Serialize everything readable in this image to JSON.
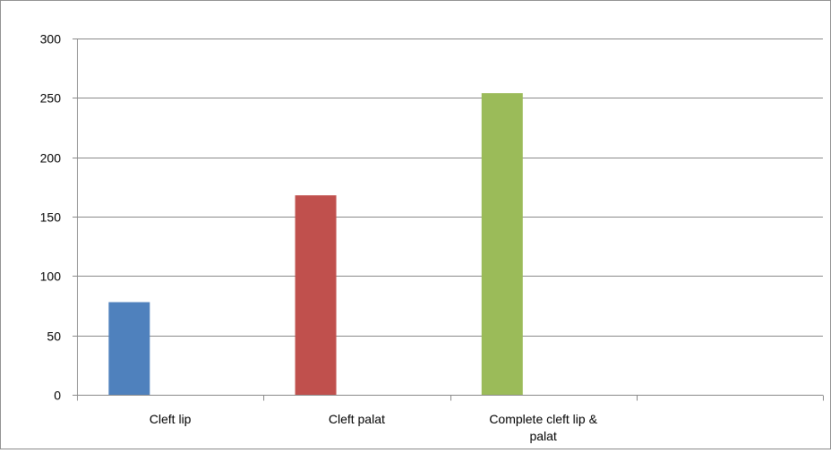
{
  "chart_data": {
    "type": "bar",
    "categories": [
      "Cleft lip",
      "Cleft palat",
      "Complete cleft lip & palat",
      ""
    ],
    "category_label_lines": [
      [
        "Cleft lip"
      ],
      [
        "Cleft palat"
      ],
      [
        "Complete cleft lip &",
        "palat"
      ],
      []
    ],
    "values": [
      78,
      168,
      254,
      null
    ],
    "bar_colors": [
      "#4F81BD",
      "#C0504D",
      "#9BBB59",
      null
    ],
    "ylim": [
      0,
      300
    ],
    "yticks": [
      0,
      50,
      100,
      150,
      200,
      250,
      300
    ],
    "grid": true,
    "gridline_color": "#8c8c8c",
    "legend": "none",
    "title": "",
    "xlabel": "",
    "ylabel": ""
  }
}
